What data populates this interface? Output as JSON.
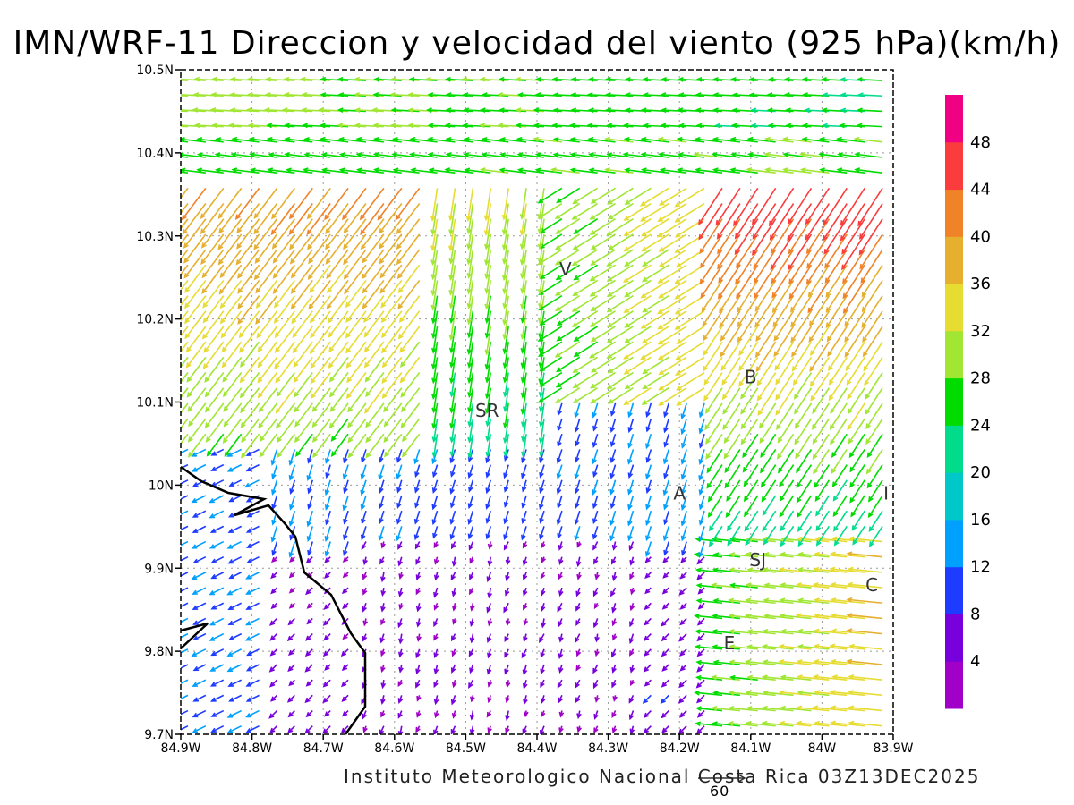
{
  "title": "IMN/WRF-11 Direccion y velocidad del viento (925 hPa)(km/h)",
  "footer": "Instituto Meteorologico Nacional Costa Rica 03Z13DEC2025",
  "reference_vector_label": "60",
  "map": {
    "lon_range": [
      -84.9,
      -83.9
    ],
    "lat_range": [
      9.7,
      10.5
    ],
    "x_ticks": [
      "84.9W",
      "84.8W",
      "84.7W",
      "84.6W",
      "84.5W",
      "84.4W",
      "84.3W",
      "84.2W",
      "84.1W",
      "84W",
      "83.9W"
    ],
    "y_ticks": [
      "9.7N",
      "9.8N",
      "9.9N",
      "10N",
      "10.1N",
      "10.2N",
      "10.3N",
      "10.4N",
      "10.5N"
    ],
    "grid": true,
    "places": [
      {
        "label": "V",
        "lon": -84.36,
        "lat": 10.26
      },
      {
        "label": "SR",
        "lon": -84.47,
        "lat": 10.09
      },
      {
        "label": "B",
        "lon": -84.1,
        "lat": 10.13
      },
      {
        "label": "A",
        "lon": -84.2,
        "lat": 9.99
      },
      {
        "label": "I",
        "lon": -83.91,
        "lat": 9.99
      },
      {
        "label": "SJ",
        "lon": -84.09,
        "lat": 9.91
      },
      {
        "label": "C",
        "lon": -83.93,
        "lat": 9.88
      },
      {
        "label": "E",
        "lon": -84.13,
        "lat": 9.81
      }
    ]
  },
  "colorbar": {
    "unit": "km/h",
    "labels": [
      "4",
      "8",
      "12",
      "16",
      "20",
      "24",
      "28",
      "32",
      "36",
      "40",
      "44",
      "48"
    ],
    "colors": [
      "#a000c8",
      "#7800dc",
      "#1e3cff",
      "#00a0ff",
      "#00c8c8",
      "#00dc8c",
      "#00dc00",
      "#a0e632",
      "#e6dc32",
      "#e6af2d",
      "#f08228",
      "#fa3c3c",
      "#f00082"
    ]
  },
  "wind_field_description": "Regional wind vectors at 925 hPa over central Costa Rica; strong easterly flow (28-36 km/h) in the north, convergent southwesterly flow (30-44 km/h) northwest, light (<8 km/h) winds in the south-central lowlands, stronger easterlies (24-44 km/h) in the east."
}
